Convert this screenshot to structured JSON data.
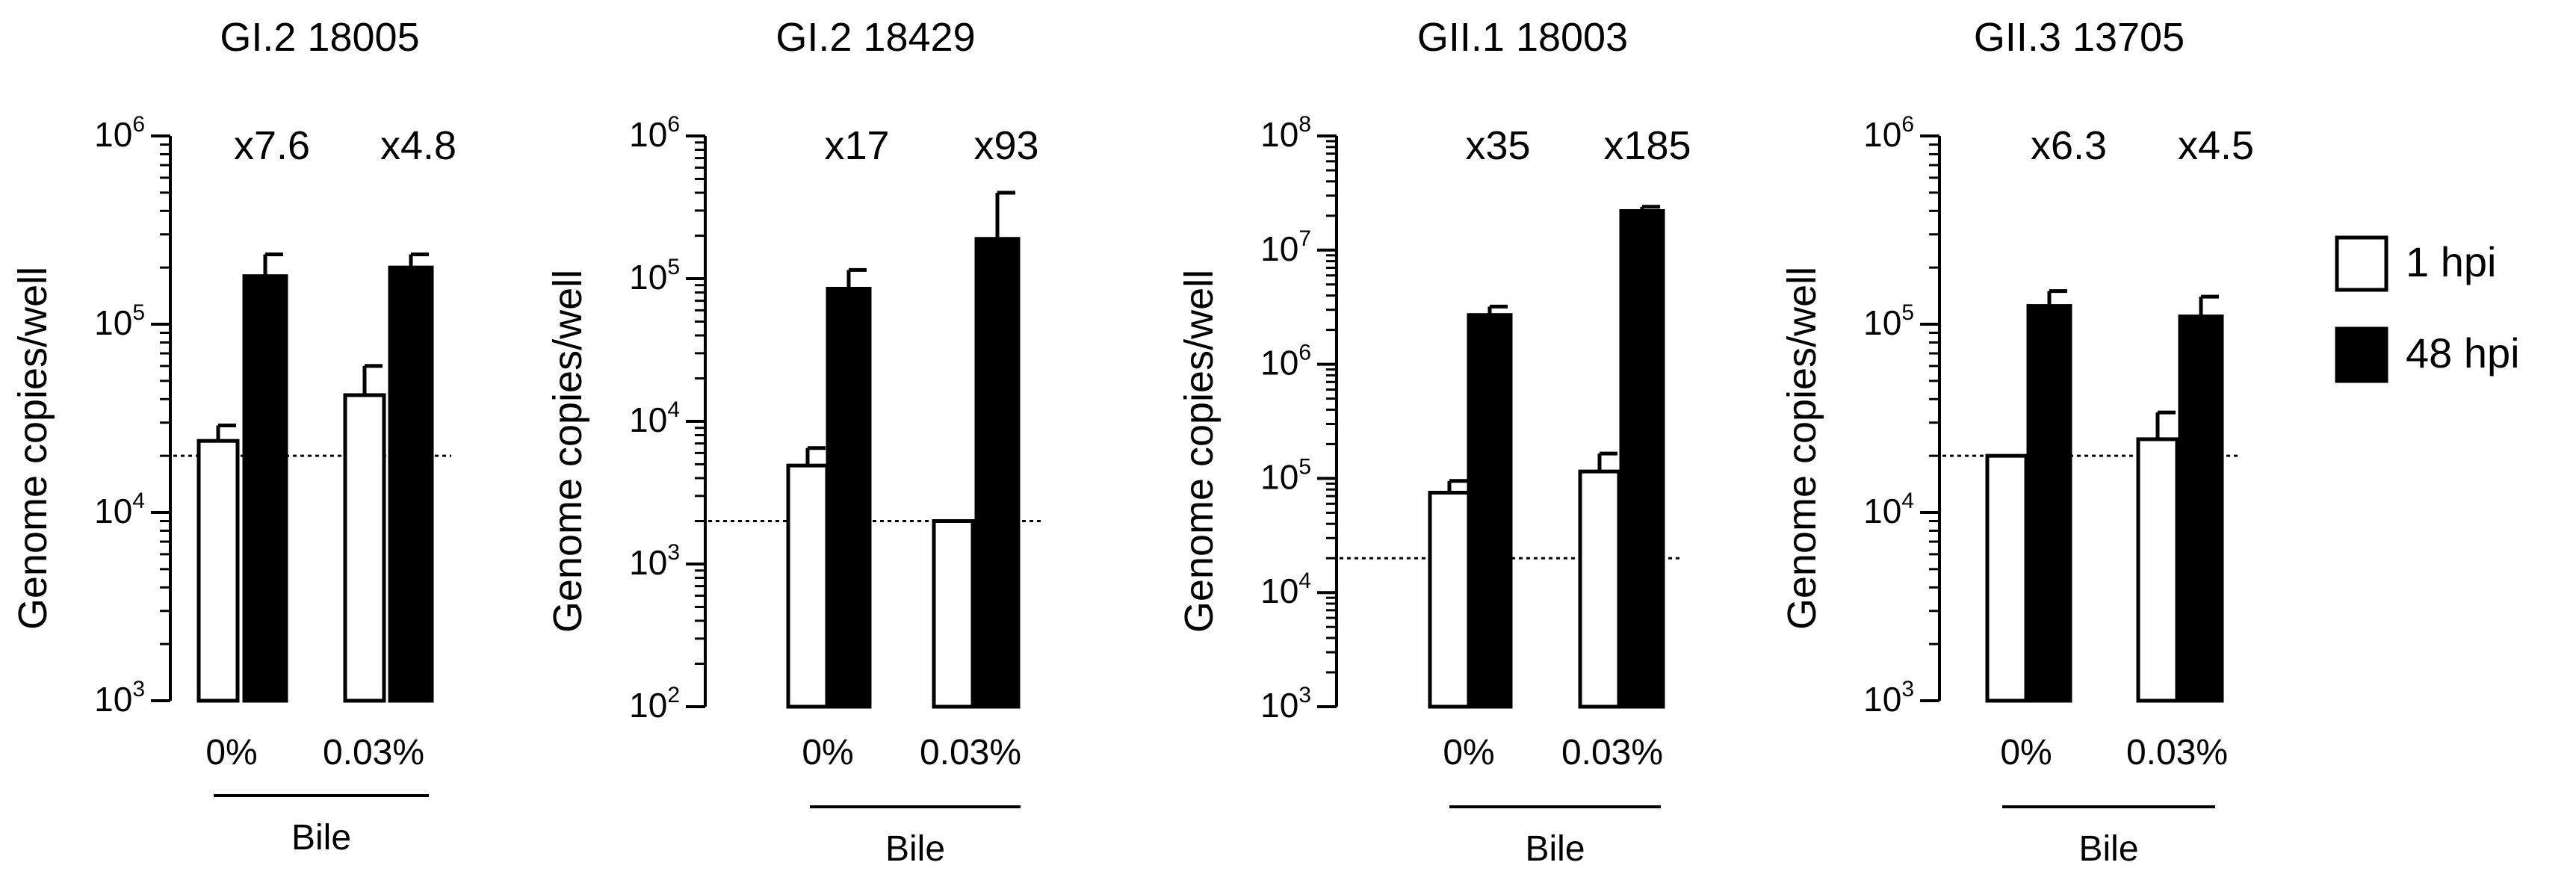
{
  "legend": {
    "entries": [
      {
        "label": "1 hpi",
        "fill": "#ffffff"
      },
      {
        "label": "48 hpi",
        "fill": "#000000"
      }
    ]
  },
  "colors": {
    "bar_1hpi": "#ffffff",
    "bar_48hpi": "#000000",
    "stroke": "#000000"
  },
  "chart_data": [
    {
      "type": "bar",
      "scale": "log",
      "title": "GI.2 18005",
      "ylabel": "Genome copies/well",
      "xlabel": "Bile",
      "categories": [
        "0%",
        "0.03%"
      ],
      "ylim": [
        1000,
        1000000
      ],
      "yticks": [
        {
          "value": 1000,
          "base": "10",
          "exp": "3"
        },
        {
          "value": 10000,
          "base": "10",
          "exp": "4"
        },
        {
          "value": 100000,
          "base": "10",
          "exp": "5"
        },
        {
          "value": 1000000,
          "base": "10",
          "exp": "6"
        }
      ],
      "series": [
        {
          "name": "1 hpi",
          "values": [
            24000,
            42000
          ],
          "errors": [
            29000,
            60000
          ]
        },
        {
          "name": "48 hpi",
          "values": [
            180000,
            200000
          ],
          "errors": [
            235000,
            235000
          ]
        }
      ],
      "detection_limit": 20000,
      "fold_labels": [
        "x7.6",
        "x4.8"
      ]
    },
    {
      "type": "bar",
      "scale": "log",
      "title": "GI.2 18429",
      "ylabel": "Genome copies/well",
      "xlabel": "Bile",
      "categories": [
        "0%",
        "0.03%"
      ],
      "ylim": [
        100,
        1000000
      ],
      "yticks": [
        {
          "value": 100,
          "base": "10",
          "exp": "2"
        },
        {
          "value": 1000,
          "base": "10",
          "exp": "3"
        },
        {
          "value": 10000,
          "base": "10",
          "exp": "4"
        },
        {
          "value": 100000,
          "base": "10",
          "exp": "5"
        },
        {
          "value": 1000000,
          "base": "10",
          "exp": "6"
        }
      ],
      "series": [
        {
          "name": "1 hpi",
          "values": [
            4900,
            2000
          ],
          "errors": [
            6500,
            2000
          ]
        },
        {
          "name": "48 hpi",
          "values": [
            85000,
            190000
          ],
          "errors": [
            115000,
            400000
          ]
        }
      ],
      "detection_limit": 2000,
      "fold_labels": [
        "x17",
        "x93"
      ]
    },
    {
      "type": "bar",
      "scale": "log",
      "title": "GII.1 18003",
      "ylabel": "Genome copies/well",
      "xlabel": "Bile",
      "categories": [
        "0%",
        "0.03%"
      ],
      "ylim": [
        1000,
        100000000
      ],
      "yticks": [
        {
          "value": 1000,
          "base": "10",
          "exp": "3"
        },
        {
          "value": 10000,
          "base": "10",
          "exp": "4"
        },
        {
          "value": 100000,
          "base": "10",
          "exp": "5"
        },
        {
          "value": 1000000,
          "base": "10",
          "exp": "6"
        },
        {
          "value": 10000000,
          "base": "10",
          "exp": "7"
        },
        {
          "value": 100000000,
          "base": "10",
          "exp": "8"
        }
      ],
      "series": [
        {
          "name": "1 hpi",
          "values": [
            75000,
            115000
          ],
          "errors": [
            95000,
            165000
          ]
        },
        {
          "name": "48 hpi",
          "values": [
            2700000,
            22000000
          ],
          "errors": [
            3200000,
            24000000
          ]
        }
      ],
      "detection_limit": 20000,
      "fold_labels": [
        "x35",
        "x185"
      ]
    },
    {
      "type": "bar",
      "scale": "log",
      "title": "GII.3 13705",
      "ylabel": "Genome copies/well",
      "xlabel": "Bile",
      "categories": [
        "0%",
        "0.03%"
      ],
      "ylim": [
        1000,
        1000000
      ],
      "yticks": [
        {
          "value": 1000,
          "base": "10",
          "exp": "3"
        },
        {
          "value": 10000,
          "base": "10",
          "exp": "4"
        },
        {
          "value": 100000,
          "base": "10",
          "exp": "5"
        },
        {
          "value": 1000000,
          "base": "10",
          "exp": "6"
        }
      ],
      "series": [
        {
          "name": "1 hpi",
          "values": [
            20000,
            24500
          ],
          "errors": [
            20000,
            34000
          ]
        },
        {
          "name": "48 hpi",
          "values": [
            125000,
            110000
          ],
          "errors": [
            150000,
            140000
          ]
        }
      ],
      "detection_limit": 20000,
      "fold_labels": [
        "x6.3",
        "x4.5"
      ]
    }
  ]
}
